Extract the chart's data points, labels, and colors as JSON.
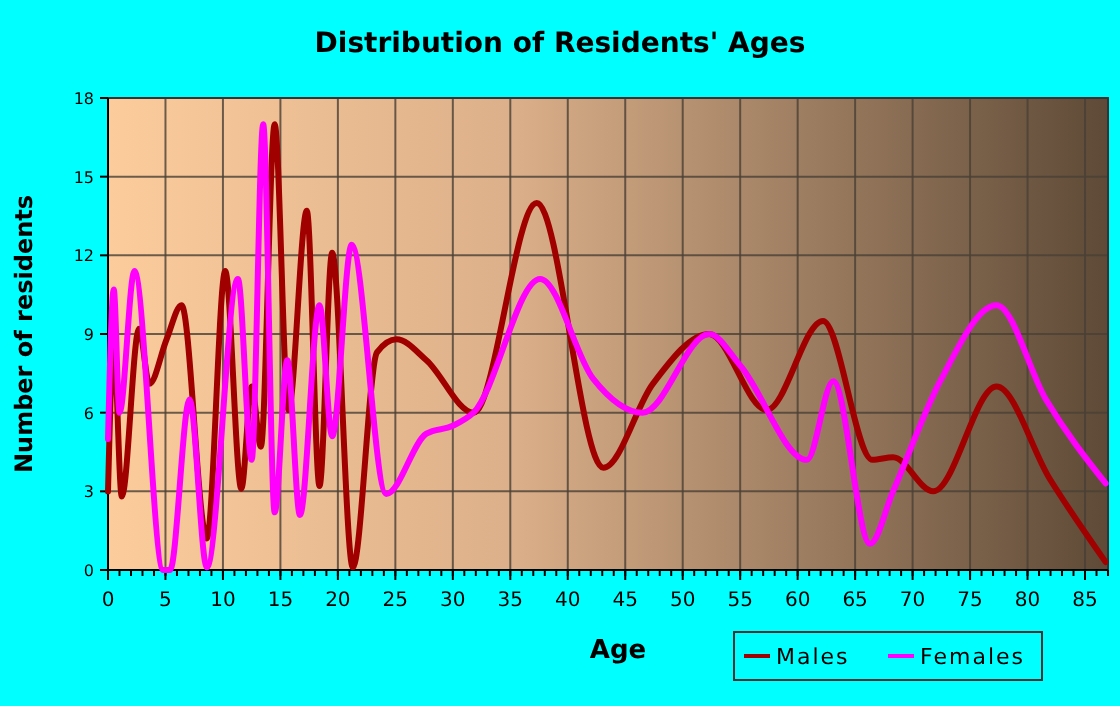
{
  "chart_data": {
    "type": "line",
    "title": "Distribution of Residents' Ages",
    "xlabel": "Age",
    "ylabel": "Number of residents",
    "xlim": [
      0,
      87
    ],
    "ylim": [
      0,
      18
    ],
    "xticks": [
      0,
      5,
      10,
      15,
      20,
      25,
      30,
      35,
      40,
      45,
      50,
      55,
      60,
      65,
      70,
      75,
      80,
      85
    ],
    "yticks": [
      0,
      3,
      6,
      9,
      12,
      15,
      18
    ],
    "grid": true,
    "legend": "bottom right",
    "marker": "none",
    "line_style": "solid",
    "series": [
      {
        "name": "Males",
        "color": "#a00000",
        "x": [
          0,
          0.5,
          1.2,
          2.7,
          3.6,
          5.1,
          6.4,
          8.6,
          10.2,
          11.6,
          12.5,
          13.3,
          14.5,
          15.7,
          17.3,
          18.4,
          19.5,
          21.3,
          23.4,
          25.1,
          27.7,
          31.8,
          37.3,
          43.1,
          47.4,
          52.3,
          57.3,
          62.2,
          66.5,
          68.3,
          71.8,
          77.3,
          81.9,
          86.8
        ],
        "values": [
          3,
          8.6,
          2.8,
          9.2,
          7.1,
          8.8,
          10.1,
          1.2,
          11.4,
          3.1,
          7,
          4.7,
          17,
          6.1,
          13.7,
          3.2,
          12.1,
          0.1,
          8.3,
          8.8,
          8,
          6,
          14,
          3.9,
          7.1,
          9,
          6.1,
          9.5,
          4.2,
          4.3,
          3,
          7,
          3.5,
          0.3
        ]
      },
      {
        "name": "Females",
        "color": "#ff00ff",
        "x": [
          0,
          0.5,
          1,
          2.3,
          4.8,
          5.4,
          7.1,
          8.6,
          11.3,
          12.5,
          13.5,
          14.5,
          15.6,
          16.7,
          18.4,
          19.5,
          21.2,
          24.2,
          27.7,
          30,
          31.8,
          37.6,
          42.2,
          46.5,
          52.3,
          55,
          60.8,
          63.1,
          66.3,
          68.3,
          72.4,
          77.3,
          81.6,
          86.8
        ],
        "values": [
          5,
          10.7,
          6,
          11.4,
          0,
          0,
          6.5,
          0.1,
          11.1,
          4.2,
          17,
          2.2,
          8,
          2.1,
          10.1,
          5.1,
          12.4,
          2.9,
          5.2,
          5.5,
          6,
          11.1,
          7.3,
          6,
          9,
          7.8,
          4.2,
          7.2,
          1,
          3,
          7.2,
          10.1,
          6.5,
          3.3
        ]
      }
    ]
  }
}
